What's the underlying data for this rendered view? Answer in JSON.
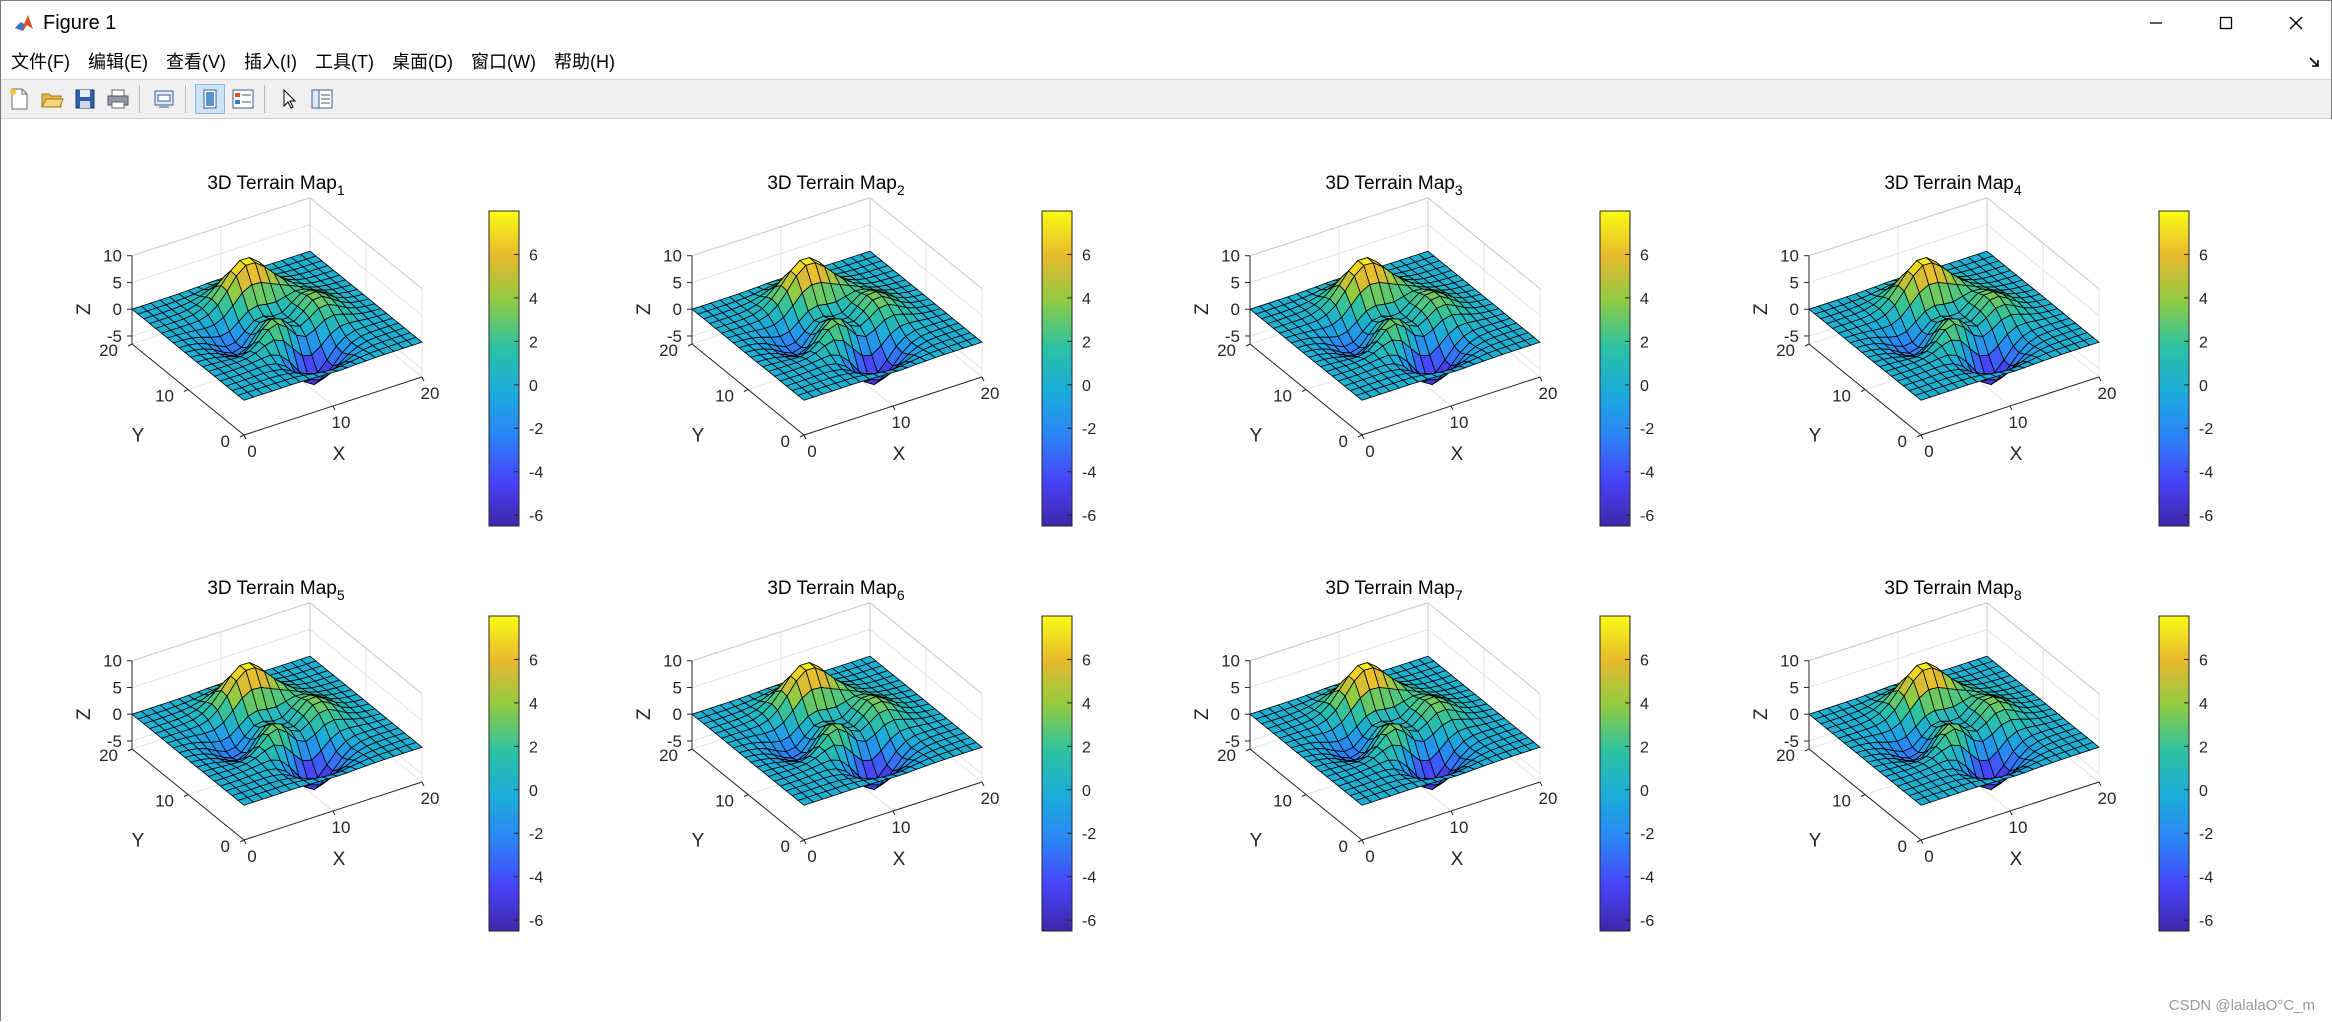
{
  "window": {
    "title": "Figure 1",
    "app_icon": "matlab-icon",
    "controls": [
      "minimize-icon",
      "maximize-icon",
      "close-icon"
    ]
  },
  "menubar": {
    "items": [
      "文件(F)",
      "编辑(E)",
      "查看(V)",
      "插入(I)",
      "工具(T)",
      "桌面(D)",
      "窗口(W)",
      "帮助(H)"
    ]
  },
  "toolbar": {
    "buttons": [
      "new-figure-icon",
      "open-file-icon",
      "save-icon",
      "print-icon",
      "print-preview-icon",
      "link-plot-icon",
      "property-inspector-icon",
      "edit-plot-arrow-icon",
      "plot-browser-icon"
    ]
  },
  "subplots": [
    {
      "title": "3D Terrain Map",
      "subscript": "1"
    },
    {
      "title": "3D Terrain Map",
      "subscript": "2"
    },
    {
      "title": "3D Terrain Map",
      "subscript": "3"
    },
    {
      "title": "3D Terrain Map",
      "subscript": "4"
    },
    {
      "title": "3D Terrain Map",
      "subscript": "5"
    },
    {
      "title": "3D Terrain Map",
      "subscript": "6"
    },
    {
      "title": "3D Terrain Map",
      "subscript": "7"
    },
    {
      "title": "3D Terrain Map",
      "subscript": "8"
    }
  ],
  "chart_data": {
    "type": "surface",
    "count": 8,
    "layout_grid": [
      2,
      4
    ],
    "xlabel": "X",
    "ylabel": "Y",
    "zlabel": "Z",
    "x_ticks": [
      "0",
      "10",
      "20"
    ],
    "y_ticks": [
      "0",
      "10",
      "20"
    ],
    "z_ticks": [
      "-5",
      "0",
      "5",
      "10"
    ],
    "xlim": [
      0,
      20
    ],
    "ylim": [
      0,
      20
    ],
    "zlim": [
      -6.5,
      10
    ],
    "colorbar": {
      "ticks": [
        "-6",
        "-4",
        "-2",
        "0",
        "2",
        "4",
        "6"
      ],
      "range": [
        -6.5,
        8
      ],
      "colormap": [
        "#3e26a8",
        "#4743f8",
        "#2c84f6",
        "#1bacd9",
        "#2dc2a2",
        "#8fcb43",
        "#e7b92e",
        "#f9fb14"
      ]
    },
    "surface": {
      "function": "peaks",
      "grid": 20,
      "edge_color": "#000000"
    },
    "grid": true
  },
  "watermark": "CSDN @lalalaO°C_m"
}
